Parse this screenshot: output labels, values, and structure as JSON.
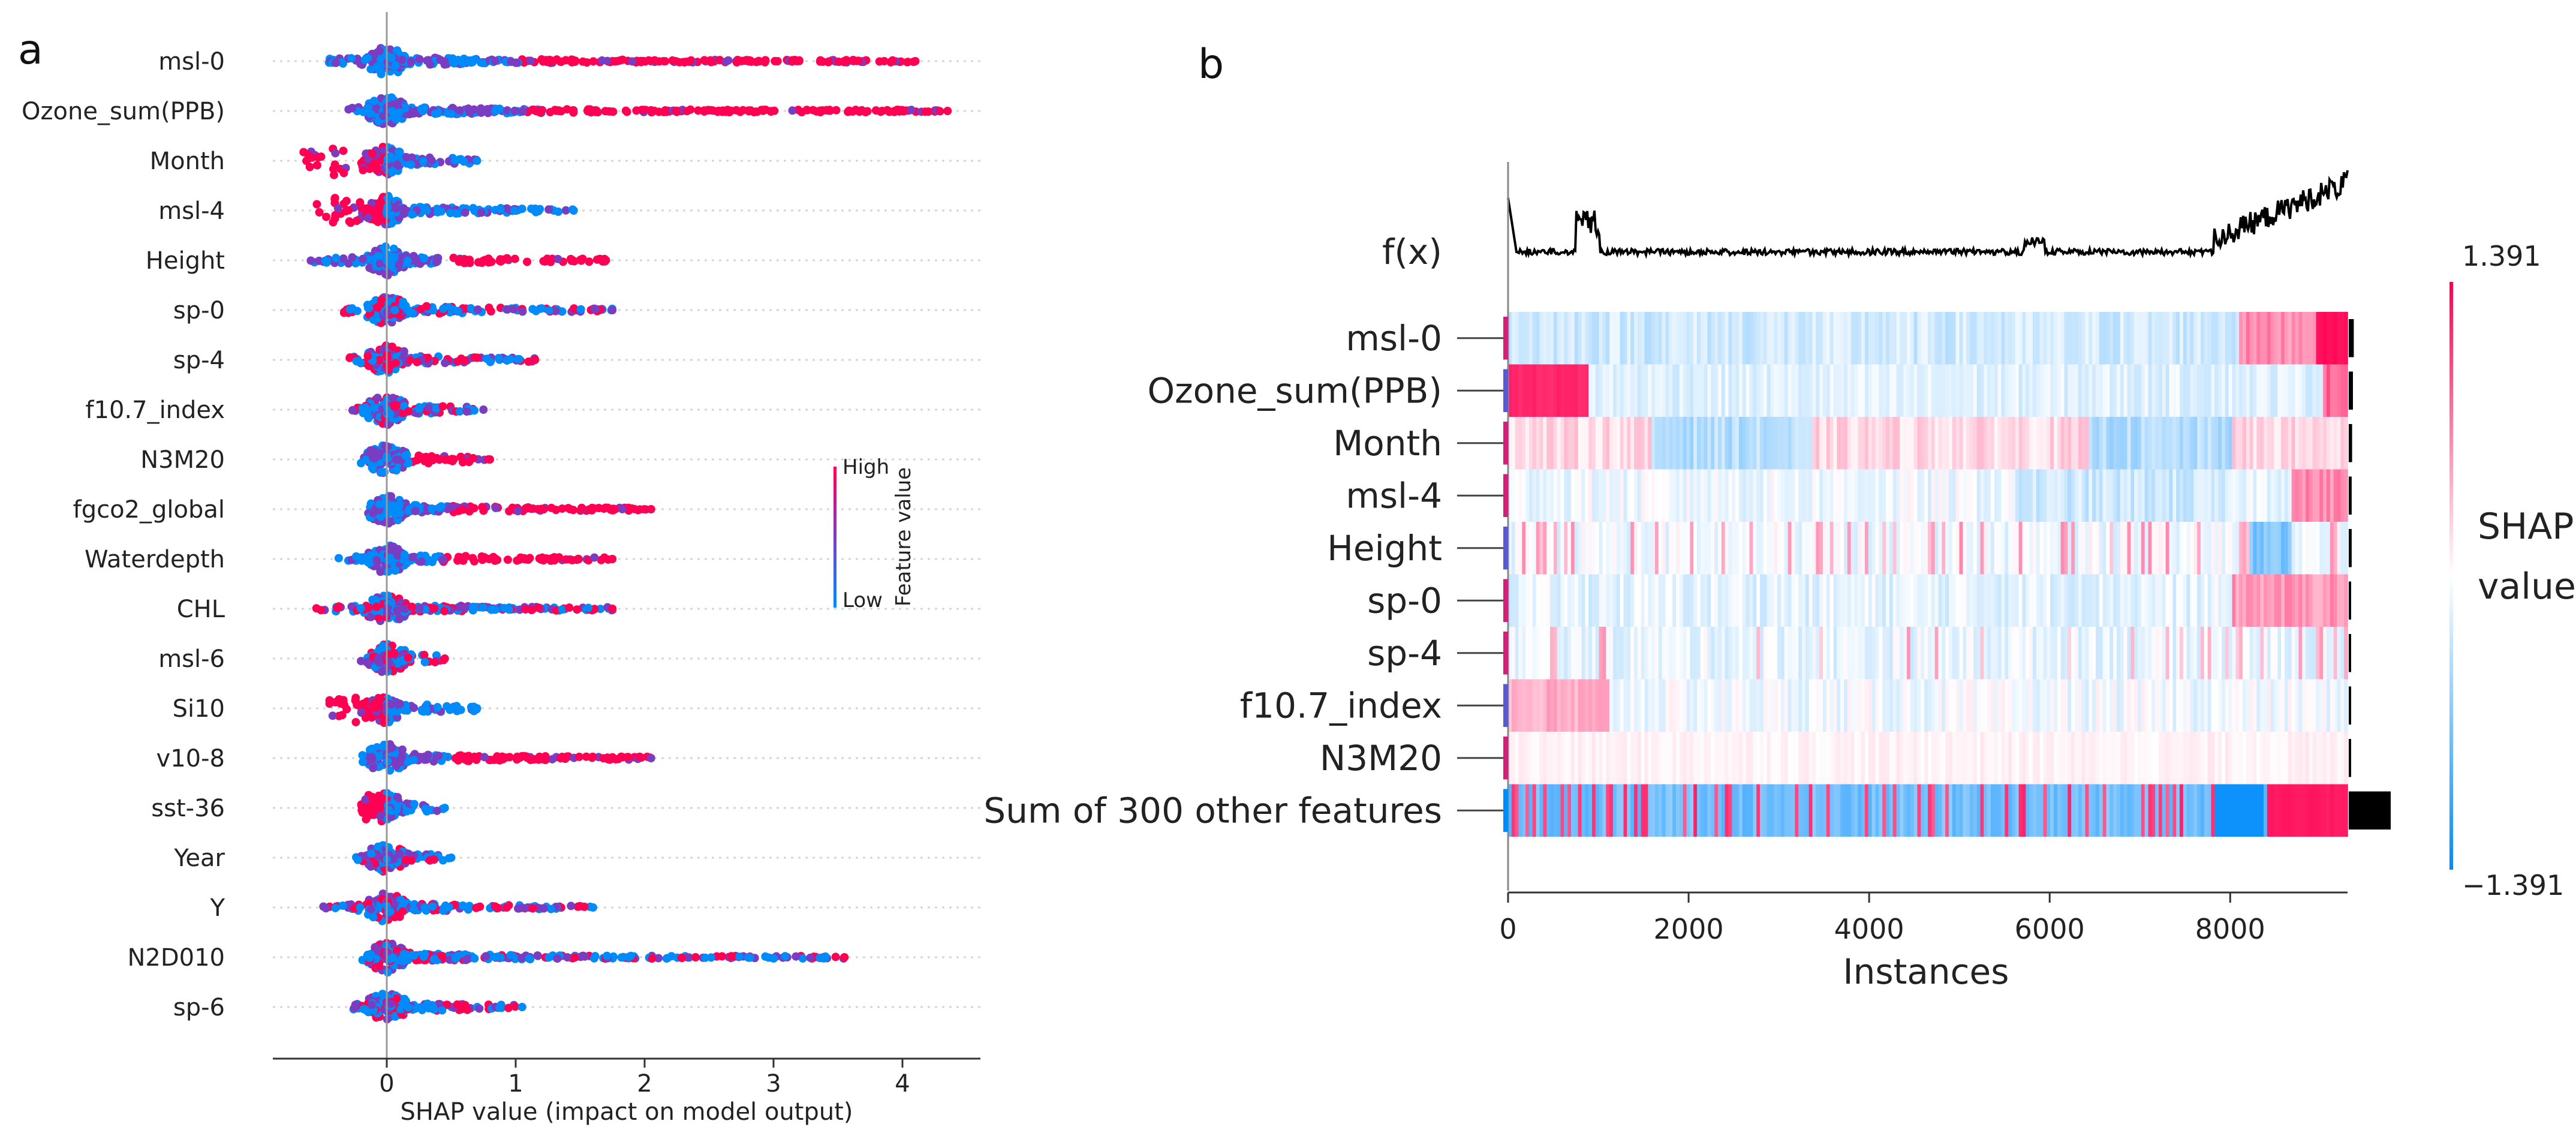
{
  "chart_data": [
    {
      "panel": "a",
      "type": "scatter",
      "subtype": "shap-beeswarm",
      "features": [
        "msl-0",
        "Ozone_sum(PPB)",
        "Month",
        "msl-4",
        "Height",
        "sp-0",
        "sp-4",
        "f10.7_index",
        "N3M20",
        "fgco2_global",
        "Waterdepth",
        "CHL",
        "msl-6",
        "Si10",
        "v10-8",
        "sst-36",
        "Year",
        "Y",
        "N2D010",
        "sp-6"
      ],
      "shap_min": [
        -0.45,
        -0.3,
        -0.65,
        -0.55,
        -0.6,
        -0.35,
        -0.3,
        -0.3,
        -0.2,
        -0.1,
        -0.4,
        -0.55,
        -0.2,
        -0.45,
        -0.2,
        -0.2,
        -0.25,
        -0.5,
        -0.2,
        -0.3
      ],
      "shap_max": [
        4.1,
        4.35,
        0.7,
        1.45,
        1.7,
        1.75,
        1.15,
        0.75,
        0.8,
        2.05,
        1.75,
        1.75,
        0.45,
        0.7,
        2.05,
        0.45,
        0.5,
        1.6,
        3.55,
        1.05
      ],
      "high_value_side": [
        "positive",
        "positive",
        "negative",
        "negative",
        "positive",
        "mixed",
        "mixed",
        "mixed",
        "positive",
        "positive",
        "positive",
        "mixed",
        "mixed",
        "negative",
        "positive",
        "negative",
        "mixed",
        "mixed",
        "mixed",
        "mixed"
      ],
      "xlabel": "SHAP value (impact on model output)",
      "xticks": [
        0,
        1,
        2,
        3,
        4
      ],
      "xlim": [
        -0.9,
        4.6
      ],
      "colorbar": {
        "high": "High",
        "low": "Low",
        "title": "Feature value"
      },
      "colors": {
        "high": "#ff0052",
        "low": "#008bfb",
        "mid": "#7a3dc2"
      }
    },
    {
      "panel": "b",
      "type": "heatmap",
      "subtype": "shap-heatmap",
      "rows": [
        "msl-0",
        "Ozone_sum(PPB)",
        "Month",
        "msl-4",
        "Height",
        "sp-0",
        "sp-4",
        "f10.7_index",
        "N3M20",
        "Sum of 300 other features"
      ],
      "fx_label": "f(x)",
      "xlabel": "Instances",
      "xticks": [
        0,
        2000,
        4000,
        6000,
        8000
      ],
      "xlim": [
        0,
        9300
      ],
      "n_instances": 9300,
      "feature_importance": [
        0.12,
        0.1,
        0.08,
        0.07,
        0.07,
        0.05,
        0.04,
        0.03,
        0.03,
        1.0
      ],
      "colorbar": {
        "max": "1.391",
        "min": "−1.391",
        "title_line1": "SHAP",
        "title_line2": "value",
        "vmax": 1.391,
        "vmin": -1.391
      },
      "colors": {
        "high": "#ff0052",
        "low": "#008bfb"
      }
    }
  ]
}
